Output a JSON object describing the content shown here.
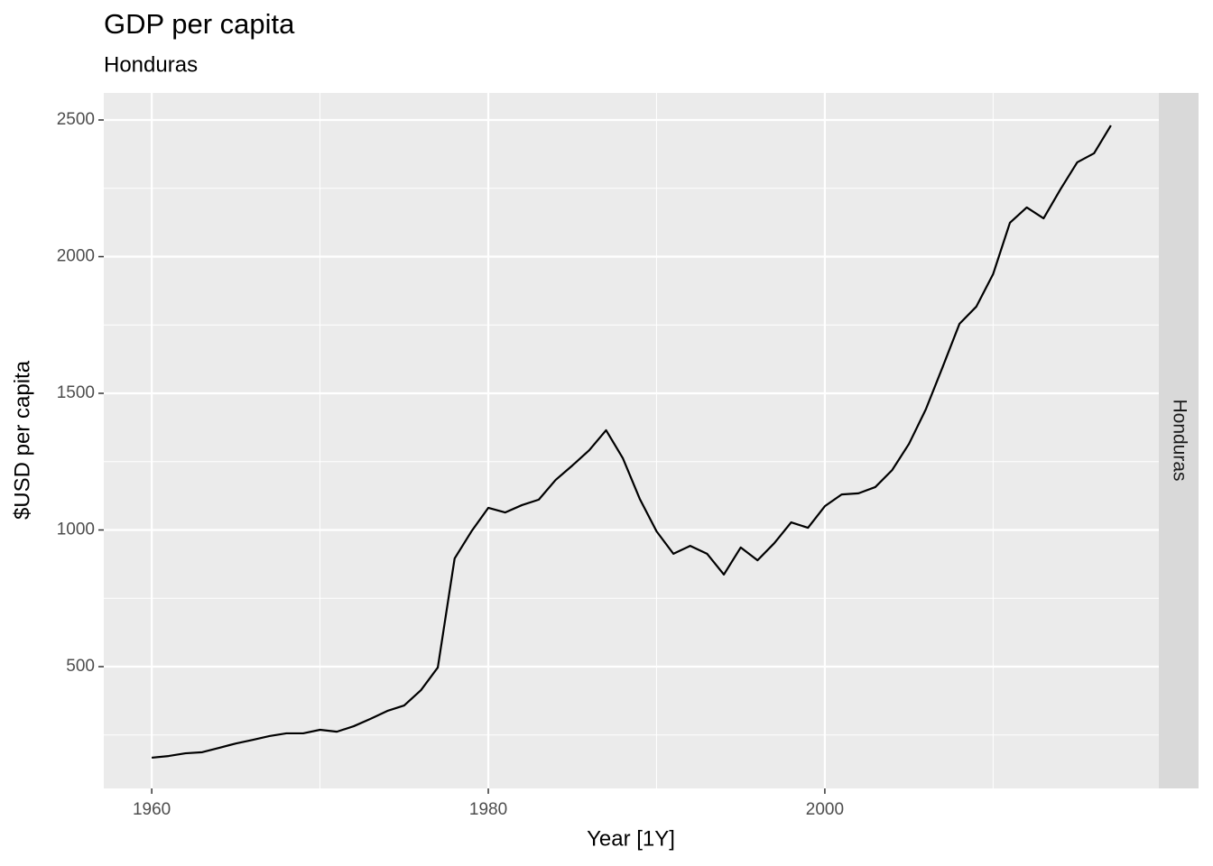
{
  "chart_data": {
    "type": "line",
    "title": "GDP per capita",
    "subtitle": "Honduras",
    "facet": "Honduras",
    "x_label": "Year [1Y]",
    "y_label": "$USD per capita",
    "x": [
      1960,
      1961,
      1962,
      1963,
      1964,
      1965,
      1966,
      1967,
      1968,
      1969,
      1970,
      1971,
      1972,
      1973,
      1974,
      1975,
      1976,
      1977,
      1978,
      1979,
      1980,
      1981,
      1982,
      1983,
      1984,
      1985,
      1986,
      1987,
      1988,
      1989,
      1990,
      1991,
      1992,
      1993,
      1994,
      1995,
      1996,
      1997,
      1998,
      1999,
      2000,
      2001,
      2002,
      2003,
      2004,
      2005,
      2006,
      2007,
      2008,
      2009,
      2010,
      2011,
      2012,
      2013,
      2014,
      2015,
      2016,
      2017
    ],
    "series": [
      {
        "name": "Honduras",
        "color": "#000000",
        "values": [
          167,
          173,
          183,
          187,
          203,
          219,
          232,
          246,
          256,
          256,
          269,
          262,
          282,
          309,
          338,
          358,
          414,
          497,
          896,
          995,
          1081,
          1064,
          1091,
          1111,
          1183,
          1236,
          1292,
          1365,
          1262,
          1114,
          995,
          913,
          942,
          913,
          837,
          936,
          889,
          952,
          1028,
          1008,
          1087,
          1130,
          1134,
          1157,
          1219,
          1315,
          1441,
          1596,
          1754,
          1817,
          1936,
          2124,
          2180,
          2140,
          2246,
          2345,
          2378,
          2480
        ]
      }
    ],
    "xlim": [
      1957.15,
      2019.85
    ],
    "xticks": [
      1960,
      1980,
      2000
    ],
    "ylim": [
      54.5,
      2599
    ],
    "yticks": [
      500,
      1000,
      1500,
      2000,
      2500
    ],
    "grid": true
  }
}
